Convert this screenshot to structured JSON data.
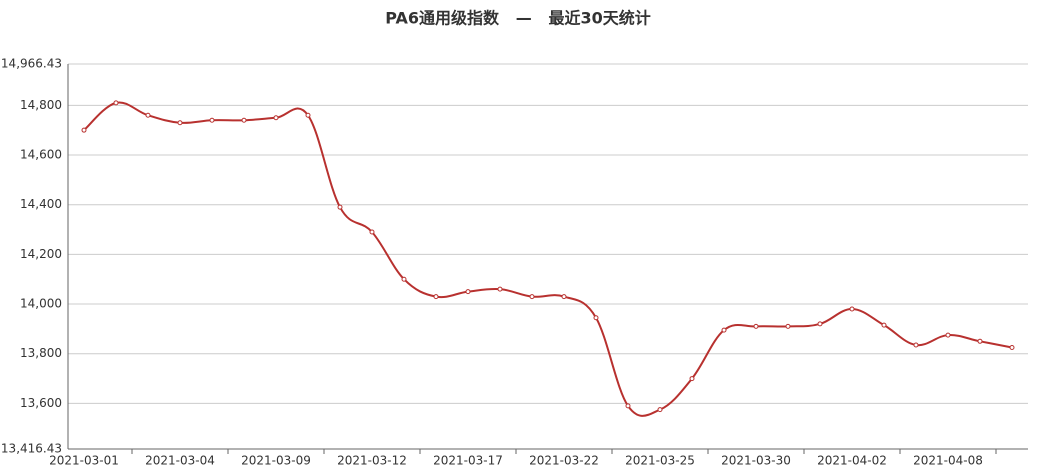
{
  "chart_data": {
    "type": "line",
    "title": "PA6通用级指数   —   最近30天统计",
    "categories": [
      "2021-03-01",
      null,
      null,
      "2021-03-04",
      null,
      null,
      "2021-03-09",
      null,
      null,
      "2021-03-12",
      null,
      null,
      "2021-03-17",
      null,
      null,
      "2021-03-22",
      null,
      null,
      "2021-03-25",
      null,
      null,
      "2021-03-30",
      null,
      null,
      "2021-04-02",
      null,
      null,
      "2021-04-08",
      null,
      null
    ],
    "series": [
      {
        "color": "#b8312f",
        "values": [
          14700,
          14810,
          14760,
          14730,
          14740,
          14740,
          14750,
          14760,
          14390,
          14290,
          14100,
          14030,
          14050,
          14060,
          14030,
          14030,
          13945,
          13590,
          13575,
          13700,
          13895,
          13910,
          13910,
          13920,
          13980,
          13915,
          13835,
          13875,
          13850,
          13825
        ]
      }
    ],
    "ylim": [
      13416.43,
      14966.43
    ],
    "yticks": [
      {
        "value": 13416.43,
        "label": "13,416.43"
      },
      {
        "value": 13600,
        "label": "13,600"
      },
      {
        "value": 13800,
        "label": "13,800"
      },
      {
        "value": 14000,
        "label": "14,000"
      },
      {
        "value": 14200,
        "label": "14,200"
      },
      {
        "value": 14400,
        "label": "14,400"
      },
      {
        "value": 14600,
        "label": "14,600"
      },
      {
        "value": 14800,
        "label": "14,800"
      },
      {
        "value": 14966.43,
        "label": "14,966.43"
      }
    ],
    "grid": true
  }
}
